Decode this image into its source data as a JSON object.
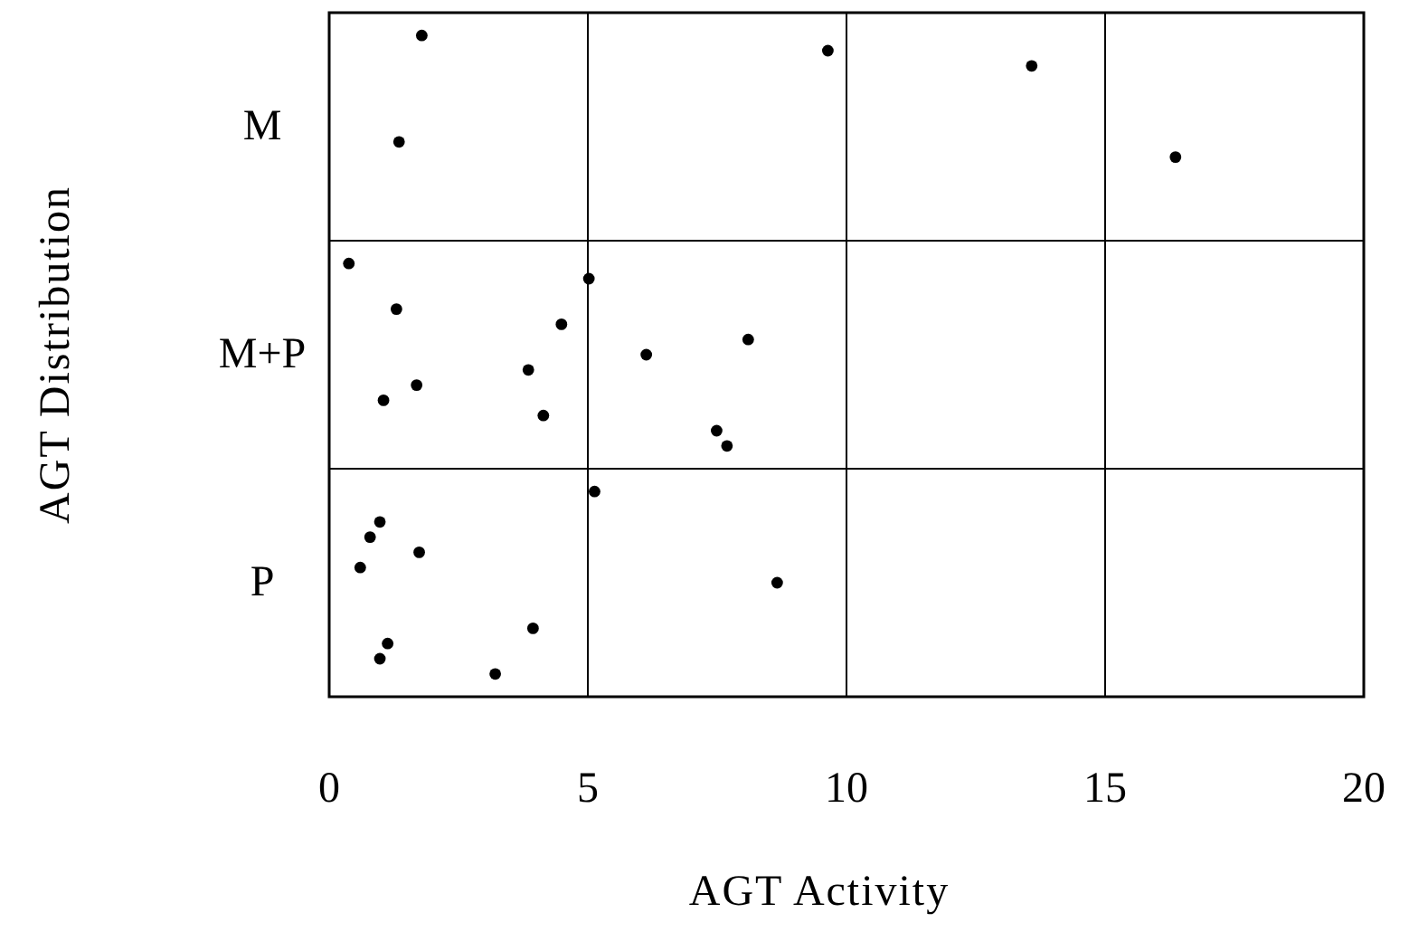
{
  "chart_data": {
    "type": "scatter",
    "orientation": "horizontal",
    "xlabel": "AGT Activity",
    "ylabel": "AGT Distribution",
    "categories": [
      "M",
      "M+P",
      "P"
    ],
    "series": [
      {
        "color": "#000000",
        "x": [
          "M",
          "M",
          "M",
          "M",
          "M",
          "M+P",
          "M+P",
          "M+P",
          "M+P",
          "M+P",
          "M+P",
          "M+P",
          "M+P",
          "M+P",
          "M+P",
          "M+P",
          "M+P",
          "P",
          "P",
          "P",
          "P",
          "P",
          "P",
          "P",
          "P",
          "P",
          "P"
        ],
        "values": [
          1.79,
          1.35,
          9.64,
          16.36,
          13.58,
          1.05,
          1.3,
          4.14,
          4.49,
          7.49,
          8.1,
          7.69,
          6.13,
          0.38,
          3.85,
          5.02,
          1.69,
          0.98,
          3.94,
          0.79,
          1.13,
          1.74,
          0.98,
          0.6,
          3.21,
          8.66,
          5.13
        ]
      }
    ],
    "marker": "circle",
    "xlim": [
      0,
      20
    ],
    "xticks": [
      0,
      5,
      10,
      15,
      20
    ],
    "grid": true
  }
}
